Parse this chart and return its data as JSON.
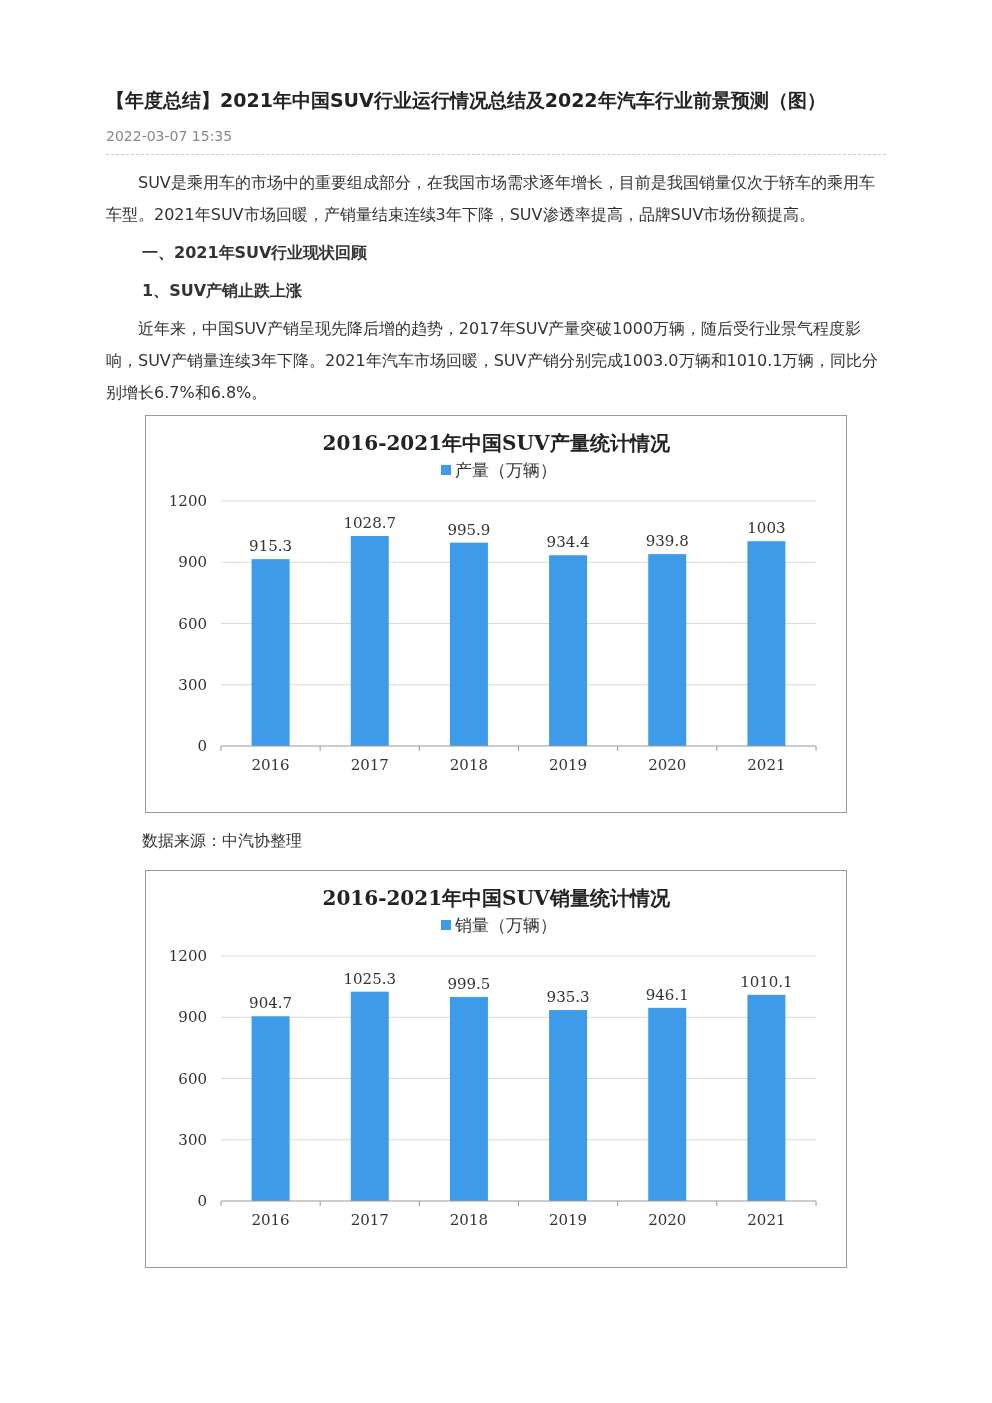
{
  "chart_data": [
    {
      "type": "bar",
      "title": "2016-2021年中国SUV产量统计情况",
      "categories": [
        "2016",
        "2017",
        "2018",
        "2019",
        "2020",
        "2021"
      ],
      "series": [
        {
          "name": "产量（万辆）",
          "color": "#3d9be9",
          "values": [
            915.3,
            1028.7,
            995.9,
            934.4,
            939.8,
            1003
          ]
        }
      ],
      "ylim": [
        0,
        1200
      ],
      "yticks": [
        0,
        300,
        600,
        900,
        1200
      ],
      "grid": "y",
      "legend": "top",
      "data_labels": true,
      "annotations": [
        "【年度总结】2021年中国SUV行业运行情况总结及2022年汽车行业前景预测（图）",
        "2022-03-07 15:35",
        "SUV是乘用车的市场中的重要组成部分，在我国市场需求逐年增长，目前是我国销量仅次于轿车的乘用车车型。2021年SUV市场回暖，产销量结束连续3年下降，SUV渗透率提高，品牌SUV市场份额提高。",
        "一、2021年SUV行业现状回顾",
        "1、SUV产销止跌上涨",
        "近年来，中国SUV产销呈现先降后增的趋势，2017年SUV产量突破1000万辆，随后受行业景气程度影响，SUV产销量连续3年下降。2021年汽车市场回暖，SUV产销分别完成1003.0万辆和1010.1万辆，同比分别增长6.7%和6.8%。",
        "数据来源：中汽协整理"
      ]
    },
    {
      "type": "bar",
      "title": "2016-2021年中国SUV销量统计情况",
      "categories": [
        "2016",
        "2017",
        "2018",
        "2019",
        "2020",
        "2021"
      ],
      "series": [
        {
          "name": "销量（万辆）",
          "color": "#3d9be9",
          "values": [
            904.7,
            1025.3,
            999.5,
            935.3,
            946.1,
            1010.1
          ]
        }
      ],
      "ylim": [
        0,
        1200
      ],
      "yticks": [
        0,
        300,
        600,
        900,
        1200
      ],
      "grid": "y",
      "legend": "top",
      "data_labels": true
    }
  ]
}
